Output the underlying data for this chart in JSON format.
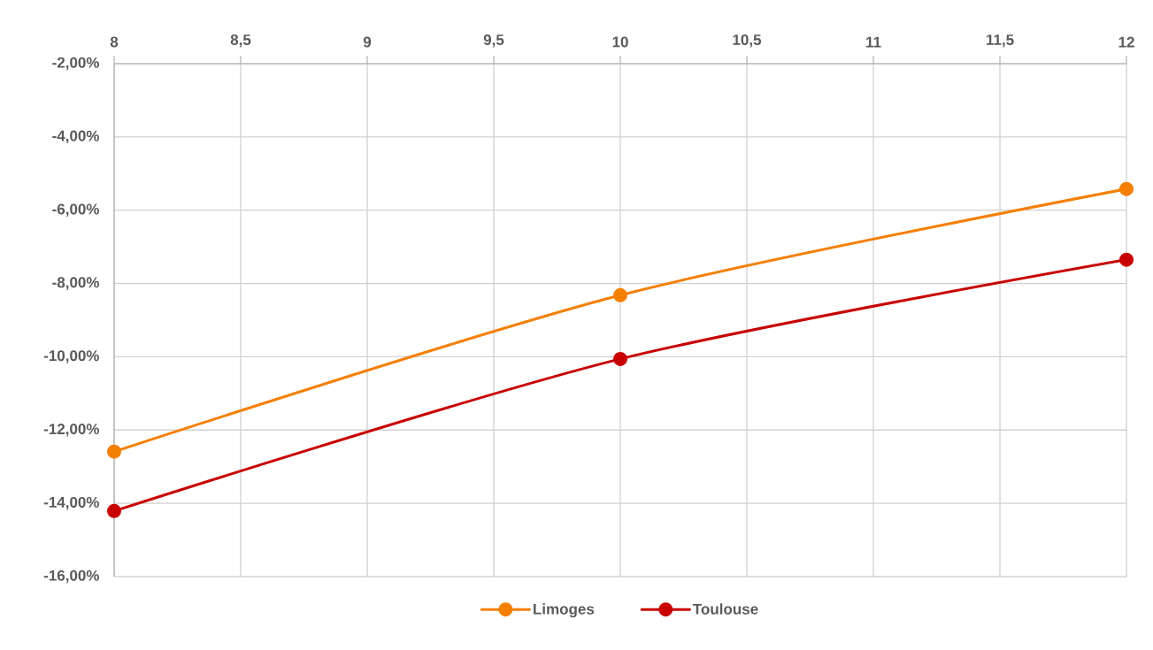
{
  "chart_data": {
    "type": "line",
    "x": [
      8,
      10,
      12
    ],
    "series": [
      {
        "name": "Limoges",
        "color": "#f57f00",
        "values": [
          -12.59,
          -8.32,
          -5.42
        ]
      },
      {
        "name": "Toulouse",
        "color": "#c80000",
        "values": [
          -14.21,
          -10.06,
          -7.35
        ]
      }
    ],
    "xlim": [
      8,
      12
    ],
    "ylim": [
      -16,
      -2
    ],
    "xticks": [
      8,
      {
        "value": 8.5,
        "label": "8,5"
      },
      9,
      {
        "value": 9.5,
        "label": "9,5"
      },
      10,
      {
        "value": 10.5,
        "label": "10,5"
      },
      11,
      {
        "value": 11.5,
        "label": "11,5"
      },
      12
    ],
    "yticks": [
      {
        "value": -16,
        "label": "-16,00%"
      },
      {
        "value": -14,
        "label": "-14,00%"
      },
      {
        "value": -12,
        "label": "-12,00%"
      },
      {
        "value": -10,
        "label": "-10,00%"
      },
      {
        "value": -8,
        "label": "-8,00%"
      },
      {
        "value": -6,
        "label": "-6,00%"
      },
      {
        "value": -4,
        "label": "-4,00%"
      },
      {
        "value": -2,
        "label": "-2,00%"
      }
    ],
    "grid": true,
    "legend": "bottom",
    "marker": "circle",
    "line_style": "solid"
  }
}
